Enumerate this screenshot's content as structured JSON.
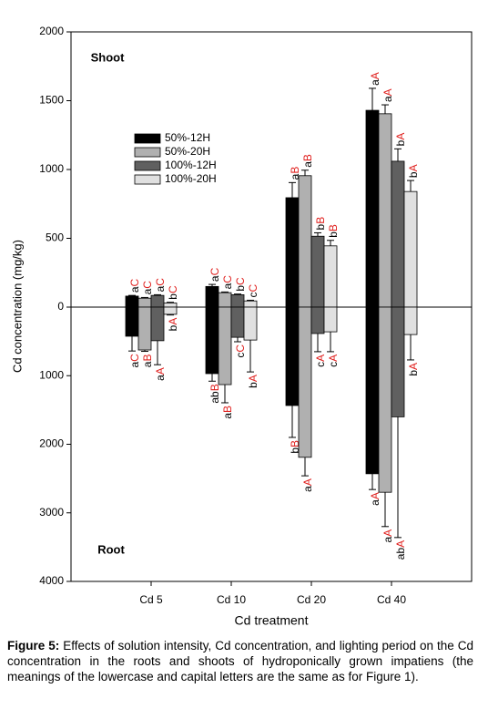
{
  "chart_data": {
    "type": "bar",
    "x_label": "Cd treatment",
    "y_label": "Cd concentration (mg/kg)",
    "shoot_label": "Shoot",
    "root_label": "Root",
    "categories": [
      "Cd 5",
      "Cd 10",
      "Cd 20",
      "Cd 40"
    ],
    "ylim": [
      0,
      2000
    ],
    "yticks": [
      0,
      500,
      1000,
      1500,
      2000
    ],
    "ylim_root": [
      0,
      4000
    ],
    "yticks_root": [
      1000,
      2000,
      3000,
      4000
    ],
    "series": [
      {
        "name": "50%-12H",
        "color": "#000000",
        "shoot": [
          80,
          150,
          795,
          1430
        ],
        "shoot_errors": [
          5,
          15,
          110,
          160
        ],
        "root": [
          425,
          970,
          1435,
          2430
        ],
        "root_errors": [
          215,
          110,
          465,
          230
        ],
        "shoot_labels": [
          [
            "a",
            "C"
          ],
          [
            "a",
            "C"
          ],
          [
            "a",
            "B"
          ],
          [
            "a",
            "A"
          ]
        ],
        "root_labels": [
          [
            "a",
            "C"
          ],
          [
            "ab",
            "B"
          ],
          [
            "b",
            "B"
          ],
          [
            "a",
            "A"
          ]
        ]
      },
      {
        "name": "50%-20H",
        "color": "#b0b0b0",
        "shoot": [
          65,
          105,
          955,
          1405
        ],
        "shoot_errors": [
          5,
          5,
          40,
          65
        ],
        "root": [
          625,
          1130,
          2190,
          2700
        ],
        "root_errors": [
          20,
          265,
          270,
          500
        ],
        "shoot_labels": [
          [
            "a",
            "C"
          ],
          [
            "a",
            "C"
          ],
          [
            "a",
            "B"
          ],
          [
            "a",
            "A"
          ]
        ],
        "root_labels": [
          [
            "a",
            "B"
          ],
          [
            "a",
            "B"
          ],
          [
            "a",
            "A"
          ],
          [
            "a",
            "A"
          ]
        ]
      },
      {
        "name": "100%-12H",
        "color": "#606060",
        "shoot": [
          85,
          90,
          515,
          1060
        ],
        "shoot_errors": [
          5,
          5,
          25,
          90
        ],
        "root": [
          490,
          440,
          385,
          1600
        ],
        "root_errors": [
          350,
          65,
          265,
          1760
        ],
        "shoot_labels": [
          [
            "a",
            "C"
          ],
          [
            "b",
            "C"
          ],
          [
            "b",
            "B"
          ],
          [
            "b",
            "A"
          ]
        ],
        "root_labels": [
          [
            "a",
            "A"
          ],
          [
            "c",
            "C"
          ],
          [
            "c",
            "A"
          ],
          [
            "ab",
            "A"
          ]
        ]
      },
      {
        "name": "100%-20H",
        "color": "#e0e0e0",
        "shoot": [
          30,
          45,
          445,
          840
        ],
        "shoot_errors": [
          5,
          5,
          40,
          80
        ],
        "root": [
          105,
          480,
          360,
          400
        ],
        "root_errors": [
          10,
          465,
          290,
          370
        ],
        "shoot_labels": [
          [
            "b",
            "C"
          ],
          [
            "c",
            "C"
          ],
          [
            "b",
            "B"
          ],
          [
            "b",
            "A"
          ]
        ],
        "root_labels": [
          [
            "b",
            "A"
          ],
          [
            "b",
            "A"
          ],
          [
            "c",
            "A"
          ],
          [
            "b",
            "A"
          ]
        ]
      }
    ]
  },
  "caption": {
    "label": "Figure 5:",
    "text": " Effects of solution intensity, Cd concentration, and lighting period on the Cd concentration in the roots and shoots of hydroponically grown impatiens (the meanings of the lowercase and capital letters are the same as for Figure 1)."
  }
}
